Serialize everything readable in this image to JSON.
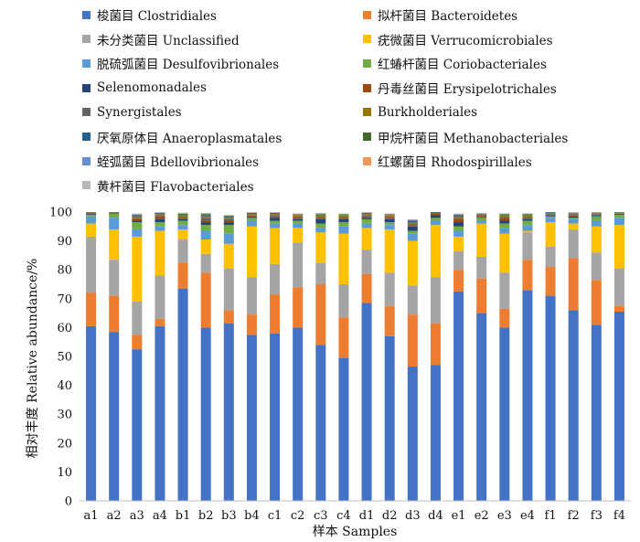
{
  "chart_data": {
    "type": "bar",
    "stacked": true,
    "xlabel": "样本 Samples",
    "ylabel": "相对丰度 Relative abundance/%",
    "ylim": [
      0,
      100
    ],
    "yticks": [
      0,
      10,
      20,
      30,
      40,
      50,
      60,
      70,
      80,
      90,
      100
    ],
    "grid": false,
    "legend_position": "top",
    "categories": [
      "a1",
      "a2",
      "a3",
      "a4",
      "b1",
      "b2",
      "b3",
      "b4",
      "c1",
      "c2",
      "c3",
      "c4",
      "d1",
      "d2",
      "d3",
      "d4",
      "e1",
      "e2",
      "e3",
      "e4",
      "f1",
      "f2",
      "f3",
      "f4"
    ],
    "series": [
      {
        "name": "梭菌目 Clostridiales",
        "color": "#4472c4",
        "values": [
          60.5,
          58.5,
          52.5,
          60.5,
          73.5,
          60,
          61.5,
          57.5,
          58,
          60,
          54,
          49.5,
          68.5,
          57,
          46.5,
          47,
          72.5,
          65,
          60,
          73,
          71,
          66,
          61,
          65.5
        ]
      },
      {
        "name": "拟杆菌目 Bacteroidetes",
        "color": "#ed7d31",
        "values": [
          11.5,
          12.5,
          5,
          2.5,
          9,
          19,
          4.5,
          7,
          13.5,
          14,
          21,
          14,
          10,
          10.5,
          18,
          14.5,
          7.5,
          12,
          6.5,
          10.5,
          10,
          18,
          15.5,
          2
        ]
      },
      {
        "name": "未分类菌目 Unclassified",
        "color": "#a5a5a5",
        "values": [
          19.5,
          12.5,
          11.5,
          15,
          8,
          6.5,
          14.5,
          13,
          10.5,
          15.5,
          7.5,
          11.5,
          8.5,
          11.5,
          10,
          16,
          6.5,
          7.5,
          12.5,
          9.5,
          7,
          10,
          9.5,
          13
        ]
      },
      {
        "name": "疣微菌目 Verrucomicrobiales",
        "color": "#ffc000",
        "values": [
          4.5,
          10.5,
          22.5,
          15.5,
          3.5,
          5,
          8.5,
          17.5,
          12.5,
          5,
          10.5,
          17.5,
          7.5,
          15,
          15.5,
          18,
          5,
          11.5,
          13.5,
          0.5,
          8.5,
          2,
          9,
          15
        ]
      },
      {
        "name": "脱硫弧菌目 Desulfovibrionales",
        "color": "#5b9bd5",
        "values": [
          2.5,
          4,
          2.5,
          1.5,
          1.5,
          3,
          3.5,
          2,
          1.5,
          1.5,
          1.5,
          2.5,
          1.5,
          1.5,
          2.5,
          1.5,
          2,
          1,
          2,
          2,
          1.5,
          1.5,
          2,
          2.5
        ]
      },
      {
        "name": "红蝽杆菌目 Coriobacteriales",
        "color": "#70ad47",
        "values": [
          0.5,
          1.5,
          2.5,
          1.5,
          1.5,
          2,
          3,
          1,
          1,
          1,
          1.5,
          1.5,
          1.5,
          1,
          1,
          1,
          1.5,
          1,
          1.5,
          1.5,
          0.5,
          0.5,
          1.5,
          1
        ]
      },
      {
        "name": "Selenomonadales",
        "color": "#264478",
        "values": [
          0.3,
          0.2,
          0.5,
          1,
          0.5,
          1,
          1,
          0.5,
          1,
          0.5,
          1.5,
          1,
          0.5,
          1,
          1.5,
          1,
          1.5,
          0.2,
          1,
          0.5,
          0.3,
          0.5,
          0.3,
          0.2
        ]
      },
      {
        "name": "丹毒丝菌目 Erysipelotrichales",
        "color": "#9e480e",
        "values": [
          0.2,
          0.1,
          0.5,
          1,
          0.5,
          0.5,
          0.5,
          0.2,
          0.5,
          0.5,
          0.5,
          0.5,
          0.5,
          0.5,
          0.5,
          0.5,
          1,
          0.5,
          1,
          0.5,
          0.3,
          0.5,
          0.3,
          0.2
        ]
      },
      {
        "name": "Synergistales",
        "color": "#636363",
        "values": [
          0.2,
          0.2,
          0.5,
          0.5,
          0.5,
          1,
          0.5,
          0.3,
          0.5,
          0.5,
          0.5,
          0.5,
          0.5,
          0.5,
          0.5,
          0.5,
          0.5,
          0.3,
          0.5,
          0.5,
          0.3,
          0.3,
          0.3,
          0.2
        ]
      },
      {
        "name": "Burkholderiales",
        "color": "#997300",
        "values": [
          0.2,
          0.2,
          0.5,
          0.3,
          0.3,
          0.5,
          0.5,
          0.3,
          0.3,
          0.3,
          0.3,
          0.3,
          0.3,
          0.3,
          0.3,
          0.3,
          0.5,
          0.2,
          0.3,
          0.3,
          0.3,
          0.2,
          0.2,
          0.2
        ]
      },
      {
        "name": "厌氧原体目 Anaeroplasmatales",
        "color": "#255e91",
        "values": [
          0.1,
          0.1,
          0.3,
          0.2,
          0.3,
          0.5,
          0.3,
          0.2,
          0.2,
          0.2,
          0.3,
          0.2,
          0.2,
          0.2,
          0.5,
          0.2,
          0.3,
          0.1,
          0.3,
          0.3,
          0.2,
          0.1,
          0.1,
          0.1
        ]
      },
      {
        "name": "甲烷杆菌目 Methanobacteriales",
        "color": "#43682b",
        "values": [
          0.1,
          0.1,
          0.3,
          0.2,
          0.3,
          0.3,
          0.3,
          0.2,
          0.2,
          0.2,
          0.2,
          0.2,
          0.2,
          0.2,
          0.3,
          0.2,
          0.3,
          0.1,
          0.2,
          0.2,
          0.2,
          0.1,
          0.1,
          0.1
        ]
      },
      {
        "name": "蛭弧菌目 Bdellovibrionales",
        "color": "#698ed0",
        "values": [
          0.1,
          0.1,
          0.2,
          0.1,
          0.2,
          0.2,
          0.2,
          0.1,
          0.1,
          0.1,
          0.2,
          0.1,
          0.1,
          0.1,
          0.2,
          0.1,
          0.2,
          0.1,
          0.1,
          0.1,
          0.1,
          0.1,
          0.1,
          0.1
        ]
      },
      {
        "name": "红螺菌目 Rhodospirillales",
        "color": "#f1975a",
        "values": [
          0.1,
          0.1,
          0.1,
          0.1,
          0.1,
          0.1,
          0.1,
          0.1,
          0.1,
          0.1,
          0.1,
          0.1,
          0.1,
          0.1,
          0.1,
          0.1,
          0.1,
          0.1,
          0.1,
          0.1,
          0.1,
          0.1,
          0.1,
          0.1
        ]
      },
      {
        "name": "黄杆菌目 Flavobacteriales",
        "color": "#b7b7b7",
        "values": [
          0.1,
          0.1,
          0.1,
          0.1,
          0.1,
          0.1,
          0.1,
          0.1,
          0.1,
          0.1,
          0.1,
          0.1,
          0.1,
          0.1,
          0.1,
          0.1,
          0.1,
          0.1,
          0.1,
          0.1,
          0.1,
          0.1,
          0.1,
          0.1
        ]
      }
    ]
  }
}
